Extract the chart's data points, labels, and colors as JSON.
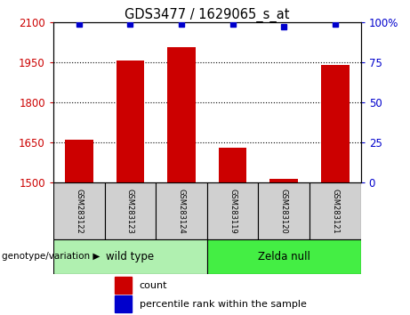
{
  "title": "GDS3477 / 1629065_s_at",
  "samples": [
    "GSM283122",
    "GSM283123",
    "GSM283124",
    "GSM283119",
    "GSM283120",
    "GSM283121"
  ],
  "counts": [
    1660,
    1955,
    2005,
    1630,
    1515,
    1940
  ],
  "percentile_ranks": [
    99,
    99,
    99,
    99,
    97,
    99
  ],
  "ylim_left": [
    1500,
    2100
  ],
  "yticks_left": [
    1500,
    1650,
    1800,
    1950,
    2100
  ],
  "ylim_right": [
    0,
    100
  ],
  "yticks_right": [
    0,
    25,
    50,
    75,
    100
  ],
  "bar_color": "#cc0000",
  "dot_color": "#0000cc",
  "bar_bottom": 1500,
  "groups": [
    {
      "label": "wild type",
      "indices": [
        0,
        1,
        2
      ]
    },
    {
      "label": "Zelda null",
      "indices": [
        3,
        4,
        5
      ]
    }
  ],
  "group_colors": [
    "#b0f0b0",
    "#44ee44"
  ],
  "group_label_text": "genotype/variation ▶",
  "legend_count_label": "count",
  "legend_percentile_label": "percentile rank within the sample",
  "tick_label_color_left": "#cc0000",
  "tick_label_color_right": "#0000cc",
  "sample_box_color": "#d0d0d0",
  "dotted_lines": [
    1650,
    1800,
    1950
  ],
  "bar_width": 0.55
}
